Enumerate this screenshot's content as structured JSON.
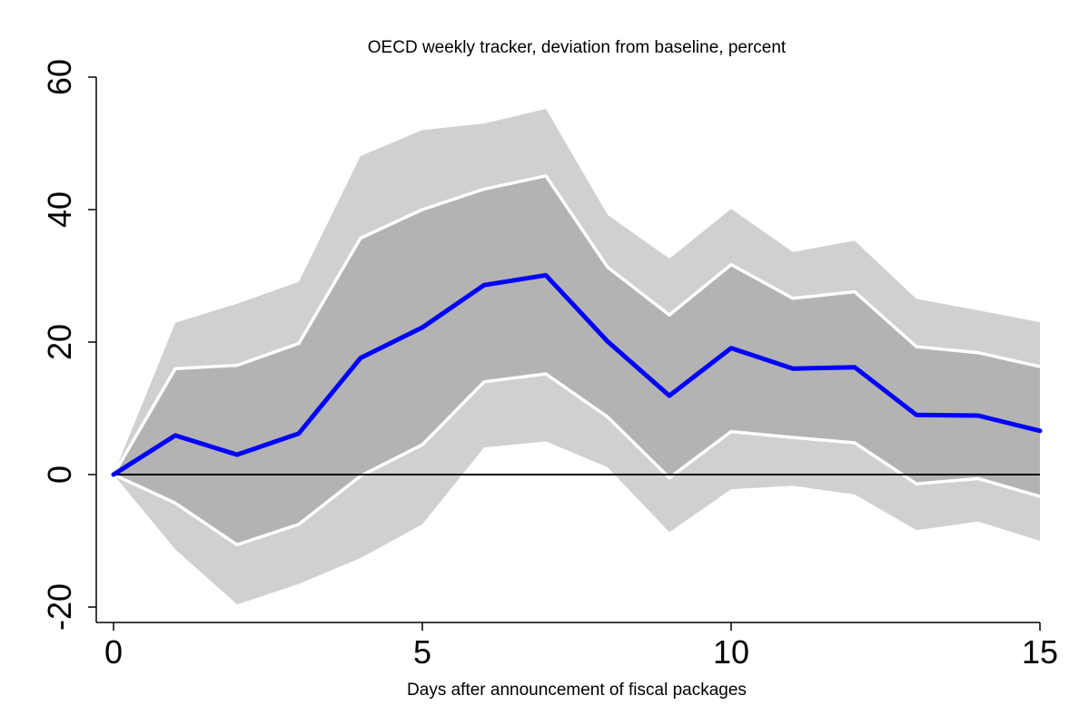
{
  "chart_data": {
    "type": "line",
    "title": "OECD weekly tracker, deviation from baseline, percent",
    "xlabel": "Days after announcement of fiscal packages",
    "ylabel": "",
    "xlim": [
      0,
      15
    ],
    "ylim": [
      -20,
      60
    ],
    "x_ticks": [
      "0",
      "5",
      "10",
      "15"
    ],
    "y_ticks": [
      "-20",
      "0",
      "20",
      "40",
      "60"
    ],
    "grid": false,
    "legend": "none",
    "x": [
      0,
      1,
      2,
      3,
      4,
      5,
      6,
      7,
      8,
      9,
      10,
      11,
      12,
      13,
      14,
      15
    ],
    "series": [
      {
        "role": "point-estimate",
        "values": [
          0,
          5.9,
          3.0,
          6.2,
          17.6,
          22.2,
          28.6,
          30.1,
          20.1,
          11.9,
          19.1,
          16.0,
          16.2,
          9.0,
          8.9,
          6.6
        ]
      },
      {
        "role": "inner-band-upper",
        "values": [
          0,
          16.0,
          16.5,
          19.8,
          35.7,
          40.0,
          43.1,
          45.1,
          31.3,
          24.1,
          31.7,
          26.6,
          27.6,
          19.3,
          18.4,
          16.3
        ]
      },
      {
        "role": "inner-band-lower",
        "values": [
          0,
          -4.3,
          -10.6,
          -7.5,
          -0.2,
          4.5,
          14.0,
          15.2,
          8.7,
          -0.5,
          6.5,
          5.6,
          4.8,
          -1.4,
          -0.6,
          -3.3
        ]
      },
      {
        "role": "outer-band-upper",
        "values": [
          0,
          22.9,
          25.8,
          29.1,
          48.1,
          52.0,
          53.0,
          55.2,
          39.2,
          32.6,
          40.1,
          33.6,
          35.3,
          26.5,
          24.8,
          23.0
        ]
      },
      {
        "role": "outer-band-lower",
        "values": [
          0,
          -11.3,
          -19.6,
          -16.5,
          -12.6,
          -7.5,
          4.1,
          5.0,
          1.1,
          -8.7,
          -2.2,
          -1.7,
          -3.0,
          -8.4,
          -7.1,
          -10.0
        ]
      }
    ],
    "colors": {
      "outer_band": "#d0d0d0",
      "inner_band": "#b3b3b3",
      "band_edge": "#ffffff",
      "line": "#0000ff",
      "zero_line": "#000000",
      "axis": "#000000"
    }
  }
}
